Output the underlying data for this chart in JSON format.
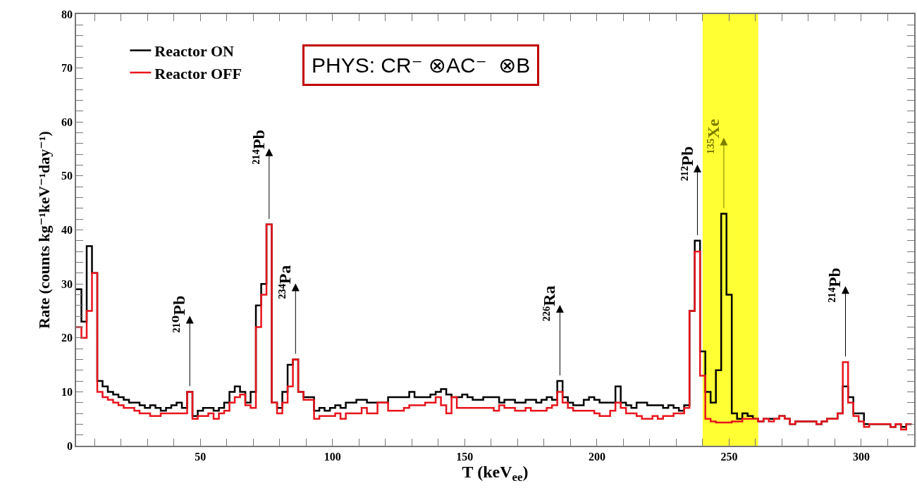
{
  "chart_data": {
    "type": "histogram",
    "xlabel": "T (keV$_{ee}$)",
    "ylabel": "Rate (counts kg⁻¹keV⁻¹day⁻¹)",
    "bins": [
      3,
      5,
      7,
      9,
      11,
      13,
      15,
      17,
      19,
      21,
      23,
      25,
      27,
      29,
      31,
      33,
      35,
      37,
      39,
      41,
      43,
      45,
      47,
      49,
      51,
      53,
      55,
      57,
      59,
      61,
      63,
      65,
      67,
      69,
      71,
      73,
      75,
      77,
      79,
      81,
      83,
      85,
      87,
      89,
      91,
      93,
      95,
      97,
      99,
      101,
      103,
      105,
      107,
      109,
      111,
      113,
      115,
      117,
      119,
      121,
      123,
      125,
      127,
      129,
      131,
      133,
      135,
      137,
      139,
      141,
      143,
      145,
      147,
      149,
      151,
      153,
      155,
      157,
      159,
      161,
      163,
      165,
      167,
      169,
      171,
      173,
      175,
      177,
      179,
      181,
      183,
      185,
      187,
      189,
      191,
      193,
      195,
      197,
      199,
      201,
      203,
      205,
      207,
      209,
      211,
      213,
      215,
      217,
      219,
      221,
      223,
      225,
      227,
      229,
      231,
      233,
      235,
      237,
      239,
      241,
      243,
      245,
      247,
      249,
      251,
      253,
      255,
      257,
      259,
      261,
      263,
      265,
      267,
      269,
      271,
      273,
      275,
      277,
      279,
      281,
      283,
      285,
      287,
      289,
      291,
      293,
      295,
      297,
      299,
      301,
      303,
      305,
      307,
      309,
      311,
      313,
      315,
      317,
      319
    ],
    "series": [
      {
        "name": "Reactor ON",
        "color": "#000000",
        "values": [
          29,
          23,
          37,
          32,
          12,
          11,
          10,
          9.5,
          9,
          8.5,
          8,
          8,
          7.5,
          7,
          7.5,
          7,
          6.5,
          7,
          7.5,
          8,
          7,
          10,
          5.5,
          6.5,
          7,
          7,
          6.5,
          7,
          8,
          10,
          11,
          10,
          8,
          10,
          26,
          30,
          41,
          8,
          7,
          10,
          15,
          16,
          10,
          9,
          9,
          6.5,
          7,
          6.5,
          7,
          7.5,
          7,
          8,
          8,
          8.5,
          8.5,
          8,
          8,
          8,
          8,
          9,
          9,
          9,
          9,
          10,
          9,
          9,
          9,
          9.5,
          10,
          10.5,
          9.5,
          9,
          9,
          9.5,
          9,
          8.5,
          8.5,
          9,
          9,
          9,
          8,
          8.5,
          8.5,
          8,
          8,
          8.5,
          8.5,
          8,
          8.5,
          9,
          8.5,
          12,
          9,
          8,
          7.5,
          7.5,
          8.5,
          9,
          8.5,
          8,
          8,
          8,
          11,
          8,
          7.5,
          7,
          8,
          8,
          7.5,
          7.5,
          7.5,
          7,
          7.5,
          7,
          6.5,
          7.5,
          25,
          38,
          17.5,
          10,
          8,
          14,
          43,
          28,
          6,
          5,
          6,
          5.5,
          5,
          4.5,
          5,
          5,
          5,
          5.5,
          5,
          4,
          4.5,
          4.5,
          4.5,
          4.5,
          4,
          4.5,
          5,
          5,
          6,
          11,
          9,
          6,
          6,
          4,
          4,
          4,
          4,
          4,
          3.5,
          4,
          3.5,
          4
        ]
      },
      {
        "name": "Reactor OFF",
        "color": "#e8141c",
        "values": [
          22,
          20,
          25,
          32,
          10,
          9,
          8.5,
          8,
          7.5,
          7,
          7,
          6.5,
          6,
          6,
          5.5,
          5.5,
          6,
          6,
          6,
          6,
          6,
          10,
          5,
          5.5,
          5.5,
          6,
          5,
          6,
          6.5,
          8,
          9,
          9.5,
          7.5,
          7,
          22,
          28,
          41,
          8,
          6,
          8,
          11,
          16,
          10,
          8.5,
          8.5,
          5,
          5.5,
          5.5,
          5.5,
          6,
          5,
          6,
          6,
          6,
          7,
          6,
          6,
          8,
          8,
          6.5,
          6.5,
          6.5,
          7,
          7.5,
          7.5,
          7.5,
          8,
          8,
          9,
          7.5,
          6,
          9,
          7,
          7,
          7,
          7,
          7,
          7,
          7,
          6.5,
          7.5,
          7,
          7,
          6.5,
          6.5,
          7,
          6.5,
          6.5,
          6.5,
          7,
          7.5,
          10,
          8,
          7,
          6.5,
          6.5,
          6.5,
          6.5,
          6,
          5.5,
          5.5,
          6.5,
          8,
          7,
          6,
          6,
          5.5,
          5,
          5,
          5.5,
          5,
          5.5,
          5.5,
          6,
          6,
          7,
          25,
          36,
          13,
          5,
          4.5,
          4.3,
          4.3,
          4.3,
          4.5,
          4.5,
          5,
          5,
          5,
          4.5,
          5,
          4.5,
          5,
          5.5,
          5,
          4,
          4.5,
          4.5,
          4.5,
          4.5,
          4,
          4.5,
          5,
          5,
          6,
          15.5,
          8,
          5.5,
          4.5,
          3.5,
          4,
          4,
          4,
          4,
          3.5,
          4,
          3,
          4
        ]
      }
    ],
    "xlim": [
      3,
      320
    ],
    "xticks": [
      {
        "value": 10,
        "label": null
      },
      {
        "value": 20,
        "label": null
      },
      {
        "value": 30,
        "label": null
      },
      {
        "value": 40,
        "label": null
      },
      50,
      {
        "value": 60,
        "label": null
      },
      {
        "value": 70,
        "label": null
      },
      {
        "value": 80,
        "label": null
      },
      {
        "value": 90,
        "label": null
      },
      100,
      {
        "value": 110,
        "label": null
      },
      {
        "value": 120,
        "label": null
      },
      {
        "value": 130,
        "label": null
      },
      {
        "value": 140,
        "label": null
      },
      150,
      {
        "value": 160,
        "label": null
      },
      {
        "value": 170,
        "label": null
      },
      {
        "value": 180,
        "label": null
      },
      {
        "value": 190,
        "label": null
      },
      200,
      {
        "value": 210,
        "label": null
      },
      {
        "value": 220,
        "label": null
      },
      {
        "value": 230,
        "label": null
      },
      {
        "value": 240,
        "label": null
      },
      250,
      {
        "value": 260,
        "label": null
      },
      {
        "value": 270,
        "label": null
      },
      {
        "value": 280,
        "label": null
      },
      {
        "value": 290,
        "label": null
      },
      300,
      {
        "value": 310,
        "label": null
      }
    ],
    "ylim": [
      0,
      80
    ],
    "yticks": [
      0,
      {
        "value": 2,
        "label": null
      },
      {
        "value": 4,
        "label": null
      },
      {
        "value": 6,
        "label": null
      },
      {
        "value": 8,
        "label": null
      },
      10,
      {
        "value": 12,
        "label": null
      },
      {
        "value": 14,
        "label": null
      },
      {
        "value": 16,
        "label": null
      },
      {
        "value": 18,
        "label": null
      },
      20,
      {
        "value": 22,
        "label": null
      },
      {
        "value": 24,
        "label": null
      },
      {
        "value": 26,
        "label": null
      },
      {
        "value": 28,
        "label": null
      },
      30,
      {
        "value": 32,
        "label": null
      },
      {
        "value": 34,
        "label": null
      },
      {
        "value": 36,
        "label": null
      },
      {
        "value": 38,
        "label": null
      },
      40,
      {
        "value": 42,
        "label": null
      },
      {
        "value": 44,
        "label": null
      },
      {
        "value": 46,
        "label": null
      },
      {
        "value": 48,
        "label": null
      },
      50,
      {
        "value": 52,
        "label": null
      },
      {
        "value": 54,
        "label": null
      },
      {
        "value": 56,
        "label": null
      },
      {
        "value": 58,
        "label": null
      },
      60,
      {
        "value": 62,
        "label": null
      },
      {
        "value": 64,
        "label": null
      },
      {
        "value": 66,
        "label": null
      },
      {
        "value": 68,
        "label": null
      },
      70,
      {
        "value": 72,
        "label": null
      },
      {
        "value": 74,
        "label": null
      },
      {
        "value": 76,
        "label": null
      },
      {
        "value": 78,
        "label": null
      },
      80
    ],
    "bands": [
      {
        "axis": "x",
        "from": 240,
        "to": 261,
        "color": "#ffff33"
      }
    ],
    "annotations": [
      {
        "text": "²¹⁰Pb",
        "x": 46,
        "y": 10
      },
      {
        "text": "²¹⁴Pb",
        "x": 76,
        "y": 41
      },
      {
        "text": "²³⁴Pa",
        "x": 86,
        "y": 16
      },
      {
        "text": "²²⁶Ra",
        "x": 186,
        "y": 12
      },
      {
        "text": "²¹²Pb",
        "x": 238,
        "y": 38
      },
      {
        "text": "¹³⁵Xe",
        "x": 248,
        "y": 43
      },
      {
        "text": "²¹⁴Pb",
        "x": 294,
        "y": 15.5
      },
      "PHYS: CR⁻ ⊗AC⁻  ⊗B"
    ],
    "grid": false,
    "legend": "top left"
  }
}
